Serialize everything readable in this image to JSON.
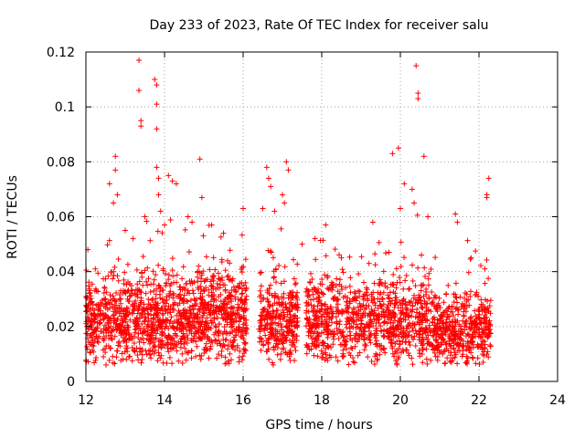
{
  "chart_data": {
    "type": "scatter",
    "title": "Day 233 of 2023, Rate Of TEC Index for receiver salu",
    "xlabel": "GPS time / hours",
    "ylabel": "ROTI / TECUs",
    "xlim": [
      12,
      24
    ],
    "ylim": [
      0,
      0.12
    ],
    "xticks": [
      "12",
      "14",
      "16",
      "18",
      "20",
      "22",
      "24"
    ],
    "yticks": [
      "0",
      "0.02",
      "0.04",
      "0.06",
      "0.08",
      "0.1",
      "0.12"
    ],
    "grid": true,
    "marker": "+",
    "color": "#ff0000",
    "series": [
      {
        "name": "ROTI",
        "segments": [
          {
            "x": [
              12.0,
              14.8
            ],
            "median": 0.022,
            "spread": 0.012,
            "count": 900
          },
          {
            "x": [
              14.8,
              16.1
            ],
            "median": 0.024,
            "spread": 0.014,
            "count": 450
          },
          {
            "x": [
              16.4,
              17.4
            ],
            "median": 0.021,
            "spread": 0.012,
            "count": 320
          },
          {
            "x": [
              17.6,
              19.0
            ],
            "median": 0.022,
            "spread": 0.012,
            "count": 400
          },
          {
            "x": [
              19.0,
              20.8
            ],
            "median": 0.022,
            "spread": 0.012,
            "count": 520
          },
          {
            "x": [
              20.8,
              22.3
            ],
            "median": 0.019,
            "spread": 0.01,
            "count": 460
          }
        ],
        "outliers": [
          {
            "x": 12.05,
            "y": 0.048
          },
          {
            "x": 12.6,
            "y": 0.072
          },
          {
            "x": 12.7,
            "y": 0.065
          },
          {
            "x": 12.75,
            "y": 0.082
          },
          {
            "x": 12.75,
            "y": 0.077
          },
          {
            "x": 12.8,
            "y": 0.068
          },
          {
            "x": 13.0,
            "y": 0.055
          },
          {
            "x": 13.2,
            "y": 0.052
          },
          {
            "x": 13.35,
            "y": 0.117
          },
          {
            "x": 13.35,
            "y": 0.106
          },
          {
            "x": 13.4,
            "y": 0.095
          },
          {
            "x": 13.4,
            "y": 0.093
          },
          {
            "x": 13.5,
            "y": 0.06
          },
          {
            "x": 13.75,
            "y": 0.11
          },
          {
            "x": 13.8,
            "y": 0.108
          },
          {
            "x": 13.8,
            "y": 0.101
          },
          {
            "x": 13.8,
            "y": 0.092
          },
          {
            "x": 13.8,
            "y": 0.078
          },
          {
            "x": 13.85,
            "y": 0.074
          },
          {
            "x": 13.85,
            "y": 0.068
          },
          {
            "x": 13.9,
            "y": 0.062
          },
          {
            "x": 14.0,
            "y": 0.057
          },
          {
            "x": 14.1,
            "y": 0.075
          },
          {
            "x": 14.2,
            "y": 0.073
          },
          {
            "x": 14.3,
            "y": 0.072
          },
          {
            "x": 14.6,
            "y": 0.06
          },
          {
            "x": 14.7,
            "y": 0.058
          },
          {
            "x": 14.9,
            "y": 0.081
          },
          {
            "x": 14.95,
            "y": 0.067
          },
          {
            "x": 15.2,
            "y": 0.057
          },
          {
            "x": 15.5,
            "y": 0.054
          },
          {
            "x": 16.0,
            "y": 0.063
          },
          {
            "x": 16.5,
            "y": 0.063
          },
          {
            "x": 16.6,
            "y": 0.078
          },
          {
            "x": 16.65,
            "y": 0.074
          },
          {
            "x": 16.7,
            "y": 0.071
          },
          {
            "x": 16.8,
            "y": 0.062
          },
          {
            "x": 17.0,
            "y": 0.068
          },
          {
            "x": 17.05,
            "y": 0.065
          },
          {
            "x": 17.1,
            "y": 0.08
          },
          {
            "x": 17.15,
            "y": 0.077
          },
          {
            "x": 17.5,
            "y": 0.05
          },
          {
            "x": 18.1,
            "y": 0.057
          },
          {
            "x": 18.5,
            "y": 0.045
          },
          {
            "x": 19.3,
            "y": 0.058
          },
          {
            "x": 19.8,
            "y": 0.083
          },
          {
            "x": 19.95,
            "y": 0.085
          },
          {
            "x": 20.0,
            "y": 0.063
          },
          {
            "x": 20.1,
            "y": 0.072
          },
          {
            "x": 20.3,
            "y": 0.07
          },
          {
            "x": 20.35,
            "y": 0.065
          },
          {
            "x": 20.4,
            "y": 0.115
          },
          {
            "x": 20.45,
            "y": 0.105
          },
          {
            "x": 20.45,
            "y": 0.103
          },
          {
            "x": 20.6,
            "y": 0.082
          },
          {
            "x": 20.7,
            "y": 0.06
          },
          {
            "x": 21.4,
            "y": 0.061
          },
          {
            "x": 21.45,
            "y": 0.058
          },
          {
            "x": 21.8,
            "y": 0.045
          },
          {
            "x": 22.15,
            "y": 0.041
          },
          {
            "x": 22.2,
            "y": 0.068
          },
          {
            "x": 22.25,
            "y": 0.074
          },
          {
            "x": 22.2,
            "y": 0.067
          }
        ]
      }
    ]
  }
}
